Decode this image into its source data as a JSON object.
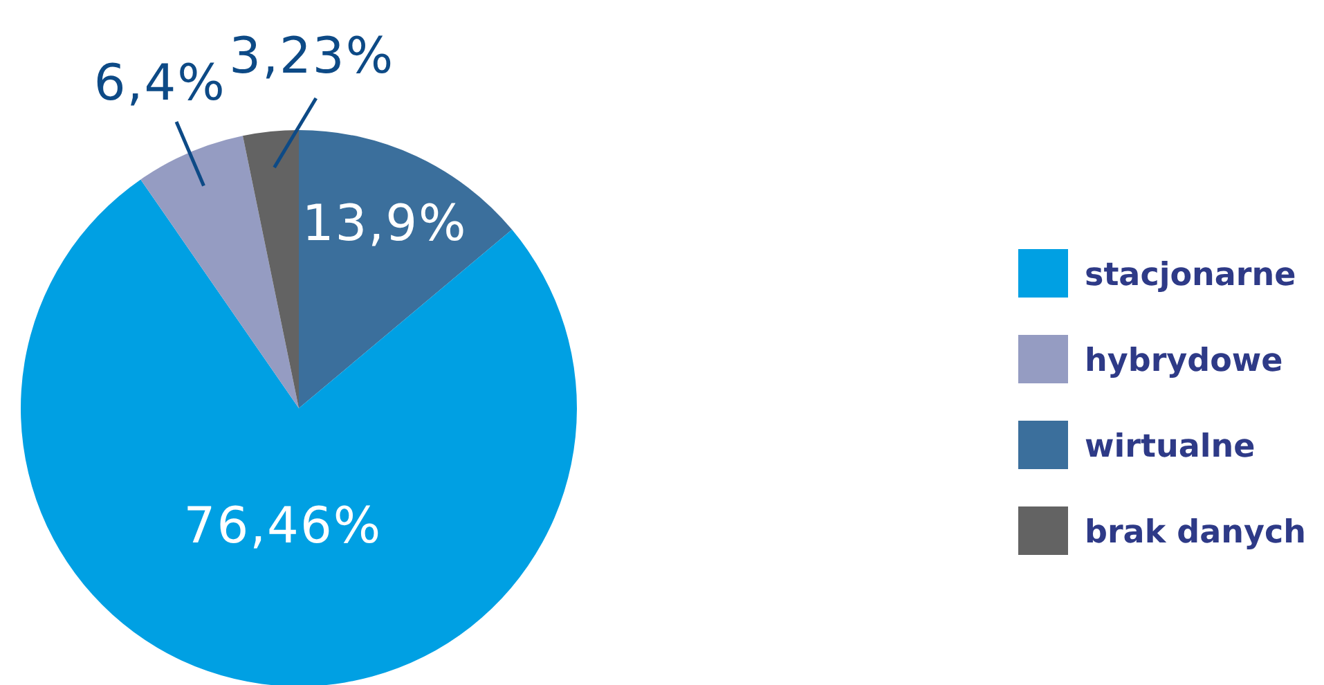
{
  "chart_data": {
    "type": "pie",
    "categories": [
      "wirtualne",
      "stacjonarne",
      "hybrydowe",
      "brak danych"
    ],
    "values": [
      13.9,
      76.46,
      6.4,
      3.23
    ],
    "colors": [
      "#3b6f9c",
      "#00a0e3",
      "#959cc2",
      "#636363"
    ],
    "value_labels": [
      "13,9%",
      "76,46%",
      "6,4%",
      "3,23%"
    ],
    "legend": "right"
  }
}
